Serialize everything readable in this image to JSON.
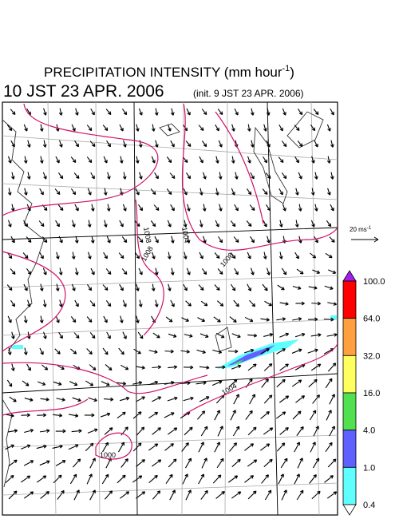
{
  "header": {
    "title": "PRECIPITATION INTENSITY (mm hour",
    "title_exponent": "-1",
    "title_close": ")",
    "valid_time": "10 JST 23 APR. 2006",
    "init_time": "(init. 9 JST 23 APR. 2006)"
  },
  "wind_scale": {
    "label": "20 ms",
    "exponent": "-1"
  },
  "colorbar": {
    "levels": [
      "100.0",
      "64.0",
      "32.0",
      "16.0",
      "4.0",
      "1.0",
      "0.4"
    ],
    "colors": [
      "#a020f0",
      "#ff0000",
      "#ffa040",
      "#ffff60",
      "#50e050",
      "#6060ff",
      "#60ffff",
      "#ffffff"
    ]
  },
  "contour_labels": [
    "1008",
    "1004",
    "1008",
    "1008",
    "1004",
    "1000"
  ]
}
